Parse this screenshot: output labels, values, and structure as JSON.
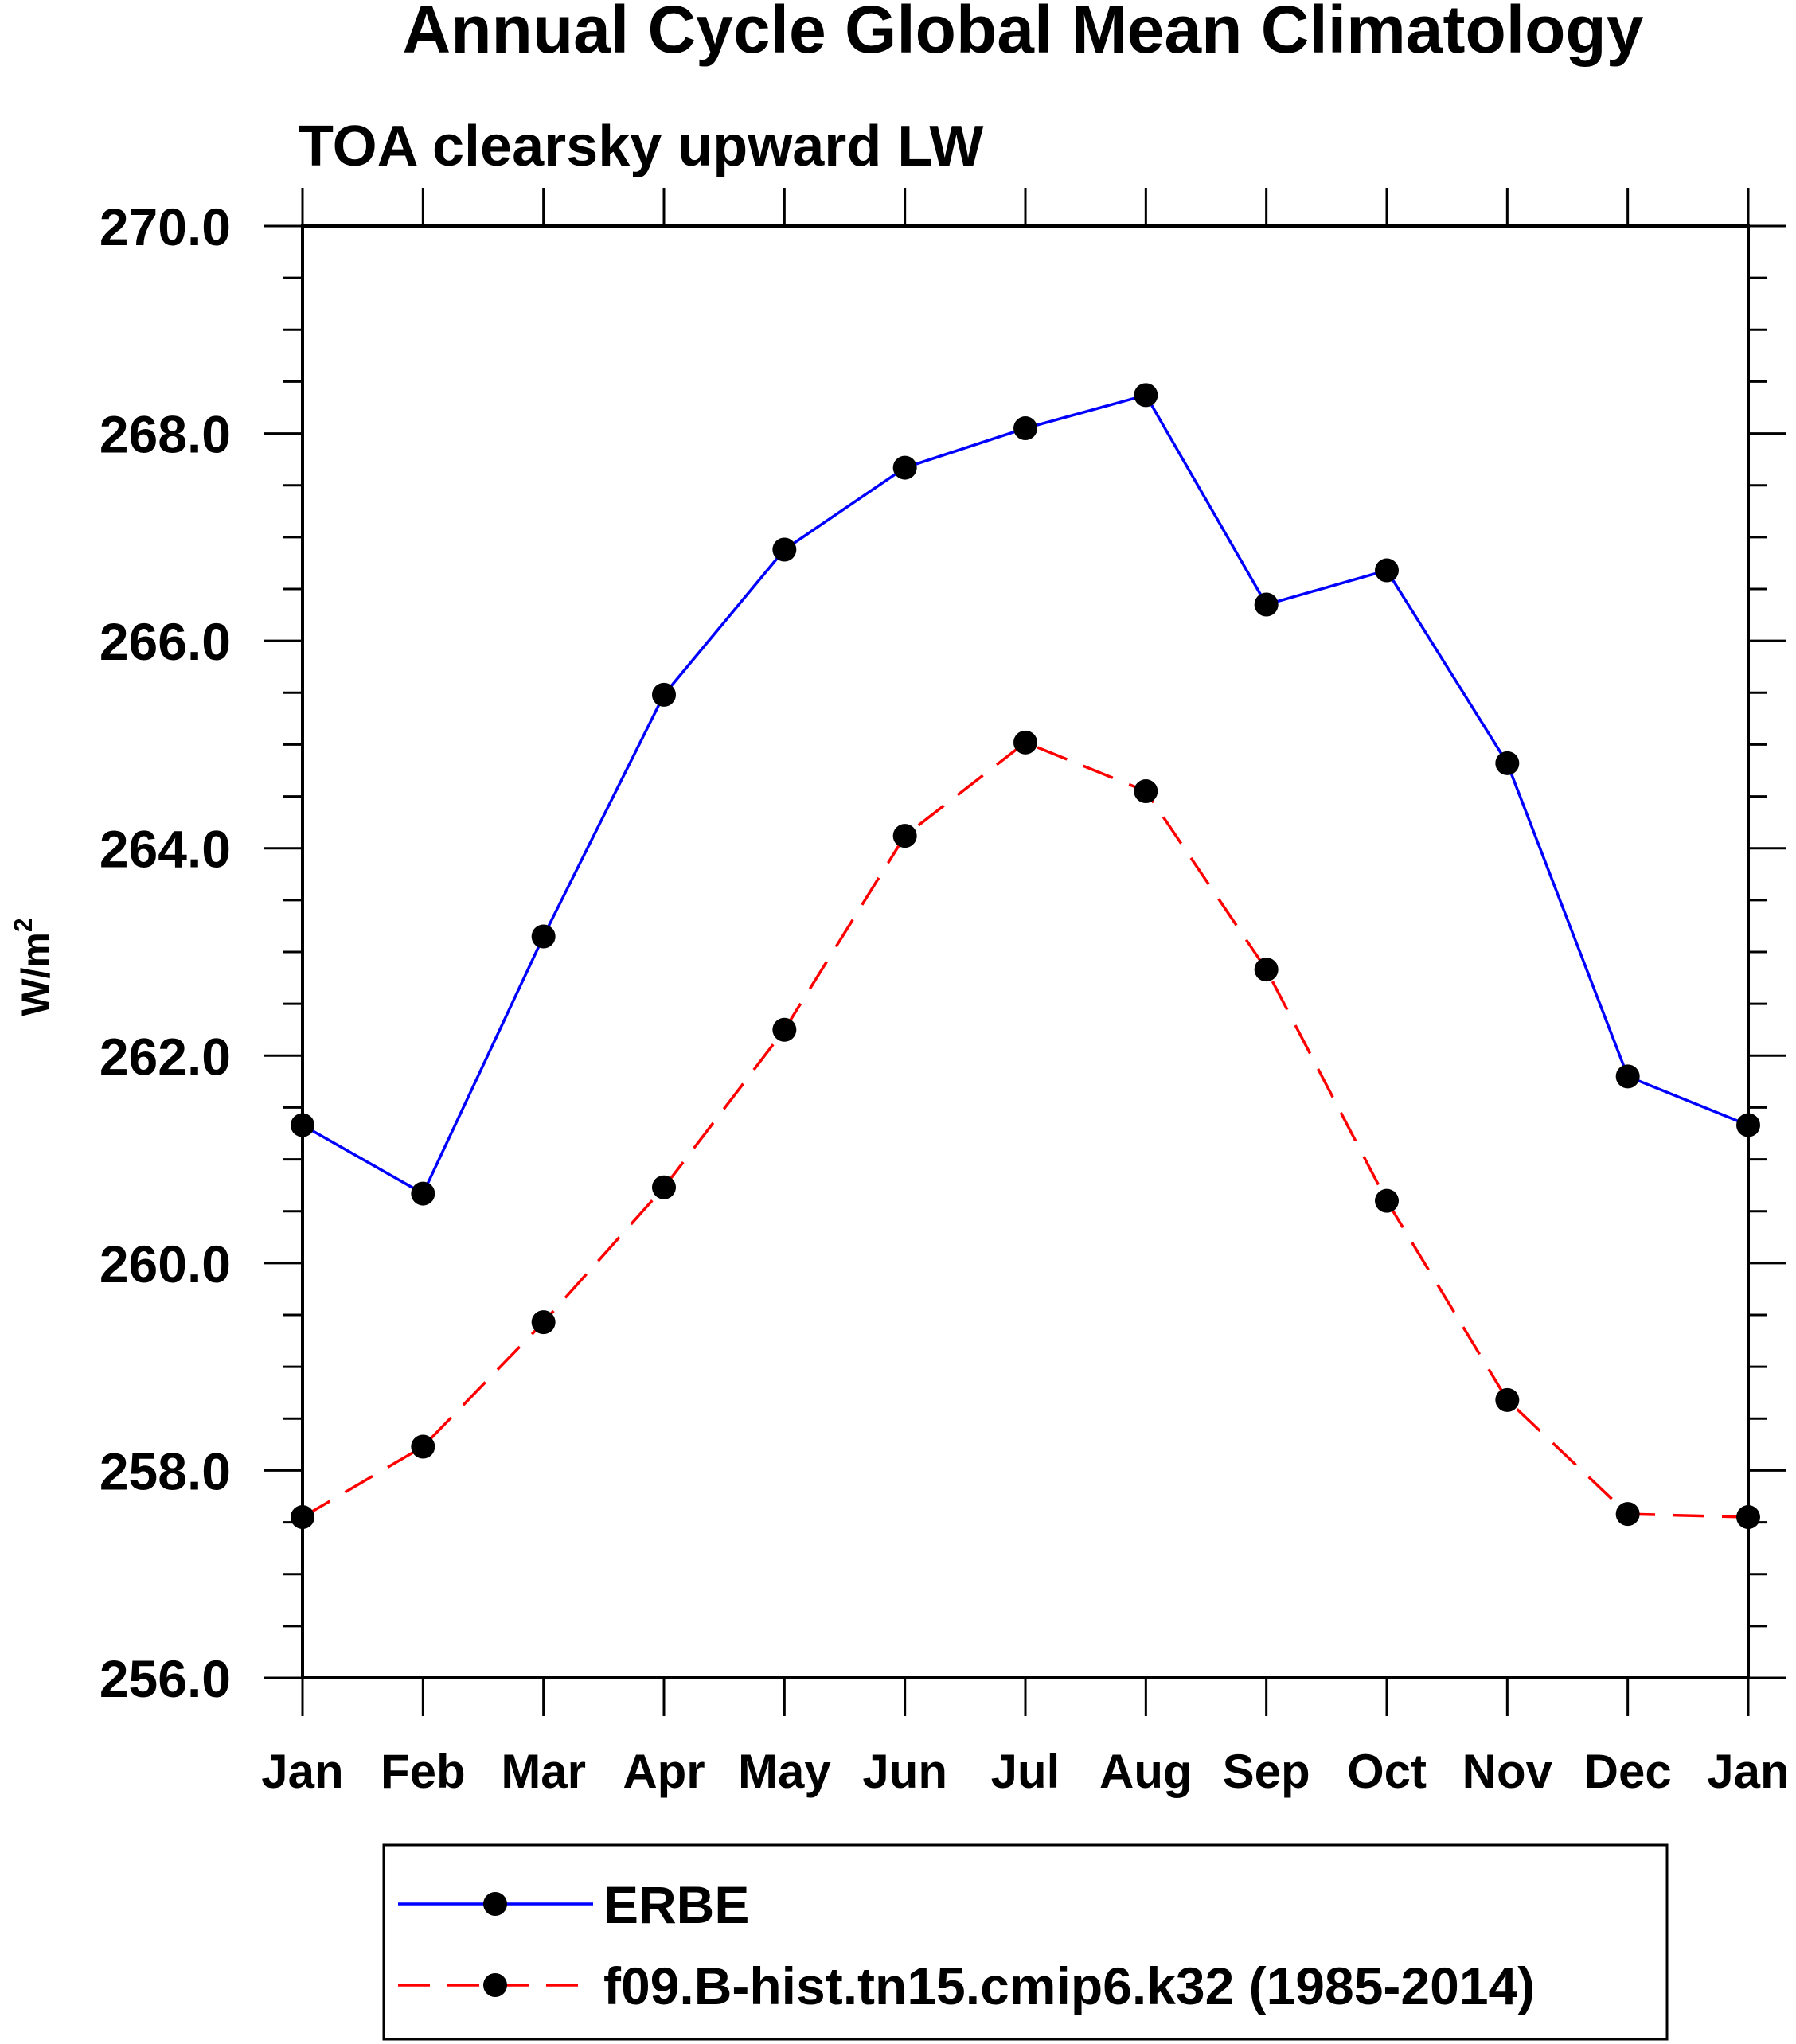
{
  "chart_data": {
    "type": "line",
    "title": "Annual Cycle Global Mean Climatology",
    "subtitle": "TOA clearsky upward LW",
    "xlabel": "",
    "ylabel": "W/m",
    "ylabel_superscript": "2",
    "categories": [
      "Jan",
      "Feb",
      "Mar",
      "Apr",
      "May",
      "Jun",
      "Jul",
      "Aug",
      "Sep",
      "Oct",
      "Nov",
      "Dec",
      "Jan"
    ],
    "ylim": [
      256.0,
      270.0
    ],
    "yticks": [
      "256.0",
      "258.0",
      "260.0",
      "262.0",
      "264.0",
      "266.0",
      "268.0",
      "270.0"
    ],
    "grid": false,
    "legend_position": "bottom",
    "series": [
      {
        "name": "ERBE",
        "color": "#0000ff",
        "line_style": "solid",
        "values": [
          261.33,
          260.67,
          263.15,
          265.48,
          266.88,
          267.67,
          268.05,
          268.37,
          266.35,
          266.68,
          264.82,
          261.8,
          261.33
        ]
      },
      {
        "name": "f09.B-hist.tn15.cmip6.k32 (1985-2014)",
        "color": "#ff0000",
        "line_style": "dashed",
        "values": [
          257.55,
          258.23,
          259.43,
          260.73,
          262.25,
          264.12,
          265.02,
          264.55,
          262.83,
          260.6,
          258.68,
          257.58,
          257.55
        ]
      }
    ]
  }
}
